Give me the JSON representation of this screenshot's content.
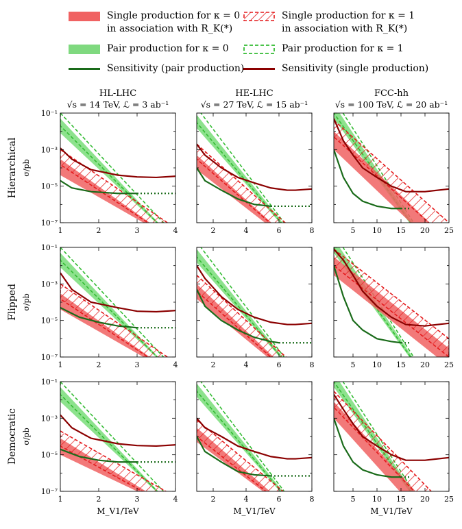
{
  "legend": {
    "items": [
      {
        "key": "single_k0",
        "line1": "Single production for κ = 0",
        "line2": "in association with R_K(*)",
        "style": "fill",
        "color": "#f06262"
      },
      {
        "key": "single_k1",
        "line1": "Single production for κ = 1",
        "line2": "in association with R_K(*)",
        "style": "hatch",
        "color": "#e41a1c"
      },
      {
        "key": "pair_k0",
        "line1": "Pair production for κ = 0",
        "line2": "",
        "style": "fill",
        "color": "#7fd97f"
      },
      {
        "key": "pair_k1",
        "line1": "Pair production for κ = 1",
        "line2": "",
        "style": "dashbox",
        "color": "#33bb33"
      },
      {
        "key": "sens_pair",
        "line1": "Sensitivity (pair production)",
        "line2": "",
        "style": "line",
        "color": "#1a6b1a"
      },
      {
        "key": "sens_single",
        "line1": "Sensitivity (single production)",
        "line2": "",
        "style": "line",
        "color": "#8b0000"
      }
    ]
  },
  "chart_data": [
    {
      "type": "area",
      "row": "Hierarchical",
      "collider": "HL-LHC",
      "title_line1": "HL-LHC",
      "title_line2": "√s = 14 TeV, ℒ = 3 ab⁻¹",
      "xlim": [
        1,
        4
      ],
      "xticks": [
        1,
        2,
        3,
        4
      ],
      "ylabel": "σ/pb",
      "xlabel": "",
      "pair_k0": {
        "x": [
          1,
          4
        ],
        "upper": [
          0.05,
          1e-08
        ],
        "lower": [
          0.008,
          1e-08
        ]
      },
      "pair_k1": {
        "x": [
          1,
          4
        ],
        "upper": [
          0.1,
          2e-08
        ],
        "lower": [
          0.02,
          1e-08
        ]
      },
      "single_k0": {
        "x": [
          1,
          4
        ],
        "upper": [
          0.0003,
          1e-08
        ],
        "lower": [
          4e-05,
          1e-08
        ]
      },
      "single_k1": {
        "x": [
          1,
          4
        ],
        "upper": [
          0.001,
          5e-08
        ],
        "lower": [
          0.00015,
          1e-08
        ]
      },
      "sens_pair": {
        "x": [
          1,
          1.3,
          1.8,
          2.5,
          3.0
        ],
        "y": [
          2e-05,
          8e-06,
          5e-06,
          4e-06,
          4e-06
        ],
        "extrap_x": [
          3.0,
          4.0
        ],
        "extrap_y": [
          4e-06,
          4e-06
        ]
      },
      "sens_single": {
        "x": [
          1,
          1.3,
          1.8,
          2.5,
          3,
          3.5,
          4
        ],
        "y": [
          0.0012,
          0.0003,
          8e-05,
          4e-05,
          3.2e-05,
          3e-05,
          3.5e-05
        ]
      }
    },
    {
      "type": "area",
      "row": "Hierarchical",
      "collider": "HE-LHC",
      "title_line1": "HE-LHC",
      "title_line2": "√s = 27 TeV, ℒ = 15 ab⁻¹",
      "xlim": [
        1,
        8
      ],
      "xticks": [
        2,
        4,
        6,
        8
      ],
      "ylabel": "",
      "xlabel": "",
      "pair_k0": {
        "x": [
          1,
          8
        ],
        "upper": [
          0.08,
          1e-09
        ],
        "lower": [
          0.015,
          1e-09
        ]
      },
      "pair_k1": {
        "x": [
          1,
          8
        ],
        "upper": [
          0.2,
          1e-09
        ],
        "lower": [
          0.03,
          1e-09
        ]
      },
      "single_k0": {
        "x": [
          1,
          8
        ],
        "upper": [
          0.0005,
          1e-09
        ],
        "lower": [
          8e-05,
          1e-09
        ]
      },
      "single_k1": {
        "x": [
          1,
          8
        ],
        "upper": [
          0.002,
          5e-09
        ],
        "lower": [
          0.0003,
          1e-09
        ]
      },
      "sens_pair": {
        "x": [
          1,
          1.5,
          2.5,
          3.5,
          4.5,
          5.5
        ],
        "y": [
          0.0001,
          2e-05,
          6e-06,
          2e-06,
          1e-06,
          8e-07
        ],
        "extrap_x": [
          5.5,
          8.0
        ],
        "extrap_y": [
          8e-07,
          8e-07
        ]
      },
      "sens_single": {
        "x": [
          1,
          1.5,
          2.5,
          3.5,
          4.5,
          5.5,
          6.5,
          7,
          8
        ],
        "y": [
          0.002,
          0.0005,
          0.0001,
          3e-05,
          1.5e-05,
          8e-06,
          6e-06,
          6e-06,
          7e-06
        ]
      }
    },
    {
      "type": "area",
      "row": "Hierarchical",
      "collider": "FCC-hh",
      "title_line1": "FCC-hh",
      "title_line2": "√s = 100 TeV, ℒ = 20 ab⁻¹",
      "xlim": [
        1,
        25
      ],
      "xticks": [
        5,
        10,
        15,
        20,
        25
      ],
      "ylabel": "",
      "xlabel": "",
      "pair_k0": {
        "x": [
          1,
          25
        ],
        "upper": [
          0.3,
          1e-10
        ],
        "lower": [
          0.05,
          1e-10
        ]
      },
      "pair_k1": {
        "x": [
          1,
          25
        ],
        "upper": [
          0.6,
          1e-10
        ],
        "lower": [
          0.1,
          1e-10
        ]
      },
      "single_k0": {
        "x": [
          1,
          25
        ],
        "upper": [
          0.01,
          1e-08
        ],
        "lower": [
          0.001,
          1e-09
        ]
      },
      "single_k1": {
        "x": [
          1,
          25
        ],
        "upper": [
          0.04,
          1e-07
        ],
        "lower": [
          0.005,
          1e-08
        ]
      },
      "sens_pair": {
        "x": [
          1,
          3,
          5,
          7,
          10,
          13,
          15
        ],
        "y": [
          0.001,
          3e-05,
          4e-06,
          1.5e-06,
          8e-07,
          6e-07,
          6e-07
        ],
        "extrap_x": [
          15,
          17
        ],
        "extrap_y": [
          6e-07,
          6e-07
        ]
      },
      "sens_single": {
        "x": [
          1,
          3,
          5,
          7,
          10,
          13,
          16,
          20,
          25
        ],
        "y": [
          0.05,
          0.003,
          0.0005,
          0.0001,
          3e-05,
          1e-05,
          5e-06,
          5e-06,
          7e-06
        ]
      }
    },
    {
      "type": "area",
      "row": "Flipped",
      "collider": "HL-LHC",
      "title_line1": "",
      "title_line2": "",
      "xlim": [
        1,
        4
      ],
      "xticks": [
        1,
        2,
        3,
        4
      ],
      "ylabel": "σ/pb",
      "xlabel": "",
      "pair_k0": {
        "x": [
          1,
          4
        ],
        "upper": [
          0.05,
          1e-08
        ],
        "lower": [
          0.008,
          1e-08
        ]
      },
      "pair_k1": {
        "x": [
          1,
          4
        ],
        "upper": [
          0.1,
          2e-08
        ],
        "lower": [
          0.02,
          1e-08
        ]
      },
      "single_k0": {
        "x": [
          1,
          4
        ],
        "upper": [
          0.0003,
          1e-08
        ],
        "lower": [
          4e-05,
          1e-08
        ]
      },
      "single_k1": {
        "x": [
          1,
          4
        ],
        "upper": [
          0.001,
          5e-08
        ],
        "lower": [
          0.00015,
          1e-08
        ]
      },
      "sens_pair": {
        "x": [
          1,
          1.5,
          2,
          2.5,
          3.0
        ],
        "y": [
          5e-05,
          1.5e-05,
          8e-06,
          5e-06,
          4e-06
        ],
        "extrap_x": [
          3.0,
          4.0
        ],
        "extrap_y": [
          4e-06,
          4e-06
        ]
      },
      "sens_single": {
        "x": [
          1,
          1.3,
          1.8,
          2.5,
          3,
          3.5,
          4
        ],
        "y": [
          0.004,
          0.0005,
          0.0001,
          5e-05,
          3.2e-05,
          3e-05,
          3.5e-05
        ]
      }
    },
    {
      "type": "area",
      "row": "Flipped",
      "collider": "HE-LHC",
      "title_line1": "",
      "title_line2": "",
      "xlim": [
        1,
        8
      ],
      "xticks": [
        2,
        4,
        6,
        8
      ],
      "ylabel": "",
      "xlabel": "",
      "pair_k0": {
        "x": [
          1,
          8
        ],
        "upper": [
          0.08,
          1e-09
        ],
        "lower": [
          0.015,
          1e-09
        ]
      },
      "pair_k1": {
        "x": [
          1,
          8
        ],
        "upper": [
          0.2,
          1e-09
        ],
        "lower": [
          0.03,
          1e-09
        ]
      },
      "single_k0": {
        "x": [
          1,
          8
        ],
        "upper": [
          0.001,
          1e-09
        ],
        "lower": [
          0.00015,
          1e-09
        ]
      },
      "single_k1": {
        "x": [
          1,
          8
        ],
        "upper": [
          0.003,
          5e-09
        ],
        "lower": [
          0.0004,
          1e-09
        ]
      },
      "sens_pair": {
        "x": [
          1,
          1.5,
          2.5,
          3.5,
          4.5,
          5.5,
          6
        ],
        "y": [
          0.0005,
          6e-05,
          1e-05,
          3e-06,
          1.2e-06,
          7e-07,
          6e-07
        ],
        "extrap_x": [
          6,
          8
        ],
        "extrap_y": [
          6e-07,
          6e-07
        ]
      },
      "sens_single": {
        "x": [
          1,
          1.5,
          2.5,
          3.5,
          4.5,
          5.5,
          6.5,
          7,
          8
        ],
        "y": [
          0.01,
          0.002,
          0.0002,
          4e-05,
          1.5e-05,
          8e-06,
          6e-06,
          6e-06,
          7e-06
        ]
      }
    },
    {
      "type": "area",
      "row": "Flipped",
      "collider": "FCC-hh",
      "title_line1": "",
      "title_line2": "",
      "xlim": [
        1,
        25
      ],
      "xticks": [
        5,
        10,
        15,
        20,
        25
      ],
      "ylabel": "",
      "xlabel": "",
      "pair_k0": {
        "x": [
          1,
          25
        ],
        "upper": [
          0.3,
          1e-10
        ],
        "lower": [
          0.05,
          1e-10
        ]
      },
      "pair_k1": {
        "x": [
          1,
          25
        ],
        "upper": [
          0.6,
          1e-10
        ],
        "lower": [
          0.1,
          1e-10
        ]
      },
      "single_k0": {
        "x": [
          1,
          25
        ],
        "upper": [
          0.03,
          3e-07
        ],
        "lower": [
          0.003,
          3e-08
        ]
      },
      "single_k1": {
        "x": [
          1,
          25
        ],
        "upper": [
          0.08,
          1e-06
        ],
        "lower": [
          0.01,
          1e-07
        ]
      },
      "sens_pair": {
        "x": [
          1,
          3,
          5,
          7,
          10,
          13,
          15
        ],
        "y": [
          0.01,
          0.0002,
          1e-05,
          3e-06,
          1e-06,
          7e-07,
          6e-07
        ],
        "extrap_x": [
          15,
          17
        ],
        "extrap_y": [
          6e-07,
          6e-07
        ]
      },
      "sens_single": {
        "x": [
          1,
          3,
          5,
          7,
          10,
          13,
          16,
          20,
          25
        ],
        "y": [
          0.08,
          0.02,
          0.003,
          0.0004,
          6e-05,
          1.5e-05,
          6e-06,
          5e-06,
          7e-06
        ]
      }
    },
    {
      "type": "area",
      "row": "Democratic",
      "collider": "HL-LHC",
      "title_line1": "",
      "title_line2": "",
      "xlim": [
        1,
        4
      ],
      "xticks": [
        1,
        2,
        3,
        4
      ],
      "ylabel": "σ/pb",
      "xlabel": "M_V1/TeV",
      "pair_k0": {
        "x": [
          1,
          4
        ],
        "upper": [
          0.05,
          1e-08
        ],
        "lower": [
          0.008,
          1e-08
        ]
      },
      "pair_k1": {
        "x": [
          1,
          4
        ],
        "upper": [
          0.1,
          2e-08
        ],
        "lower": [
          0.02,
          1e-08
        ]
      },
      "single_k0": {
        "x": [
          1,
          4
        ],
        "upper": [
          8e-05,
          1e-08
        ],
        "lower": [
          1e-05,
          1e-08
        ]
      },
      "single_k1": {
        "x": [
          1,
          4
        ],
        "upper": [
          0.0002,
          5e-08
        ],
        "lower": [
          3e-05,
          1e-08
        ]
      },
      "sens_pair": {
        "x": [
          1,
          1.5,
          2,
          2.5,
          3.0
        ],
        "y": [
          2e-05,
          8e-06,
          5e-06,
          4e-06,
          4e-06
        ],
        "extrap_x": [
          3.0,
          4.0
        ],
        "extrap_y": [
          4e-06,
          4e-06
        ]
      },
      "sens_single": {
        "x": [
          1,
          1.3,
          1.8,
          2.5,
          3,
          3.5,
          4
        ],
        "y": [
          0.0015,
          0.0003,
          8e-05,
          4e-05,
          3.2e-05,
          3e-05,
          3.5e-05
        ]
      }
    },
    {
      "type": "area",
      "row": "Democratic",
      "collider": "HE-LHC",
      "title_line1": "",
      "title_line2": "",
      "xlim": [
        1,
        8
      ],
      "xticks": [
        2,
        4,
        6,
        8
      ],
      "ylabel": "",
      "xlabel": "M_V1/TeV",
      "pair_k0": {
        "x": [
          1,
          8
        ],
        "upper": [
          0.08,
          1e-09
        ],
        "lower": [
          0.015,
          1e-09
        ]
      },
      "pair_k1": {
        "x": [
          1,
          8
        ],
        "upper": [
          0.2,
          1e-09
        ],
        "lower": [
          0.03,
          1e-09
        ]
      },
      "single_k0": {
        "x": [
          1,
          8
        ],
        "upper": [
          0.0003,
          1e-09
        ],
        "lower": [
          5e-05,
          1e-09
        ]
      },
      "single_k1": {
        "x": [
          1,
          8
        ],
        "upper": [
          0.0008,
          5e-09
        ],
        "lower": [
          0.0001,
          1e-09
        ]
      },
      "sens_pair": {
        "x": [
          1,
          1.5,
          2.5,
          3.5,
          4.5,
          5.5
        ],
        "y": [
          0.0001,
          1.5e-05,
          4e-06,
          1.2e-06,
          8e-07,
          7e-07
        ],
        "extrap_x": [
          5.5,
          8.0
        ],
        "extrap_y": [
          7e-07,
          7e-07
        ]
      },
      "sens_single": {
        "x": [
          1,
          1.5,
          2.5,
          3.5,
          4.5,
          5.5,
          6.5,
          7,
          8
        ],
        "y": [
          0.001,
          0.0003,
          0.0001,
          3e-05,
          1.5e-05,
          8e-06,
          6e-06,
          6e-06,
          7e-06
        ]
      }
    },
    {
      "type": "area",
      "row": "Democratic",
      "collider": "FCC-hh",
      "title_line1": "",
      "title_line2": "",
      "xlim": [
        1,
        25
      ],
      "xticks": [
        5,
        10,
        15,
        20,
        25
      ],
      "ylabel": "",
      "xlabel": "M_V1/TeV",
      "pair_k0": {
        "x": [
          1,
          25
        ],
        "upper": [
          0.3,
          1e-10
        ],
        "lower": [
          0.05,
          1e-10
        ]
      },
      "pair_k1": {
        "x": [
          1,
          25
        ],
        "upper": [
          0.6,
          1e-10
        ],
        "lower": [
          0.1,
          1e-10
        ]
      },
      "single_k0": {
        "x": [
          1,
          25
        ],
        "upper": [
          0.008,
          1e-09
        ],
        "lower": [
          0.001,
          1e-10
        ]
      },
      "single_k1": {
        "x": [
          1,
          25
        ],
        "upper": [
          0.03,
          1e-08
        ],
        "lower": [
          0.004,
          1e-09
        ]
      },
      "sens_pair": {
        "x": [
          1,
          3,
          5,
          7,
          10,
          13,
          15
        ],
        "y": [
          0.001,
          3e-05,
          4e-06,
          1.5e-06,
          8e-07,
          6e-07,
          6e-07
        ],
        "extrap_x": [
          15,
          17
        ],
        "extrap_y": [
          6e-07,
          6e-07
        ]
      },
      "sens_single": {
        "x": [
          1,
          3,
          5,
          7,
          10,
          13,
          16,
          20,
          25
        ],
        "y": [
          0.02,
          0.003,
          0.0005,
          0.0001,
          3e-05,
          1e-05,
          5e-06,
          5e-06,
          7e-06
        ]
      }
    }
  ],
  "axes": {
    "ylim": [
      1e-07,
      0.1
    ],
    "ytick_labels": [
      "10⁻¹",
      "10⁻³",
      "10⁻⁵",
      "10⁻⁷"
    ],
    "row_labels": [
      "Hierarchical",
      "Flipped",
      "Democratic"
    ],
    "yscale": "log"
  }
}
